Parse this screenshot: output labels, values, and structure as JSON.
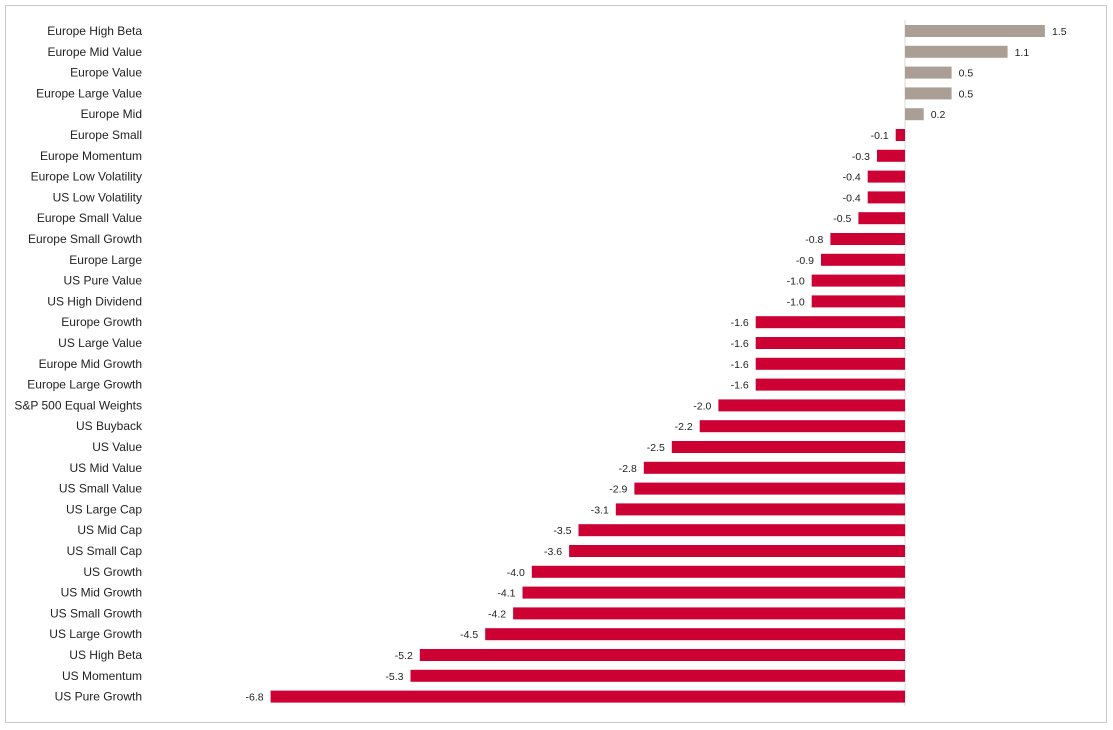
{
  "chart_data": {
    "type": "bar",
    "orientation": "horizontal",
    "title": "",
    "xlabel": "",
    "ylabel": "",
    "xlim": [
      -6.8,
      1.5
    ],
    "grid": false,
    "legend": "none",
    "colors": {
      "positive": "#ab9f95",
      "negative": "#cc0033"
    },
    "categories": [
      "Europe High Beta",
      "Europe Mid Value",
      "Europe Value",
      "Europe Large Value",
      "Europe Mid",
      "Europe Small",
      "Europe Momentum",
      "Europe Low Volatility",
      "US Low Volatility",
      "Europe Small Value",
      "Europe Small Growth",
      "Europe Large",
      "US Pure Value",
      "US High Dividend",
      "Europe Growth",
      "US Large Value",
      "Europe Mid Growth",
      "Europe Large Growth",
      "S&P 500 Equal Weights",
      "US Buyback",
      "US Value",
      "US Mid Value",
      "US Small Value",
      "US Large Cap",
      "US Mid Cap",
      "US Small Cap",
      "US Growth",
      "US Mid Growth",
      "US Small Growth",
      "US Large Growth",
      "US High Beta",
      "US Momentum",
      "US Pure Growth"
    ],
    "values": [
      1.5,
      1.1,
      0.5,
      0.5,
      0.2,
      -0.1,
      -0.3,
      -0.4,
      -0.4,
      -0.5,
      -0.8,
      -0.9,
      -1.0,
      -1.0,
      -1.6,
      -1.6,
      -1.6,
      -1.6,
      -2.0,
      -2.2,
      -2.5,
      -2.8,
      -2.9,
      -3.1,
      -3.5,
      -3.6,
      -4.0,
      -4.1,
      -4.2,
      -4.5,
      -5.2,
      -5.3,
      -6.8
    ],
    "value_labels": [
      "1.5",
      "1.1",
      "0.5",
      "0.5",
      "0.2",
      "-0.1",
      "-0.3",
      "-0.4",
      "-0.4",
      "-0.5",
      "-0.8",
      "-0.9",
      "-1.0",
      "-1.0",
      "-1.6",
      "-1.6",
      "-1.6",
      "-1.6",
      "-2.0",
      "-2.2",
      "-2.5",
      "-2.8",
      "-2.9",
      "-3.1",
      "-3.5",
      "-3.6",
      "-4.0",
      "-4.1",
      "-4.2",
      "-4.5",
      "-5.2",
      "-5.3",
      "-6.8"
    ]
  }
}
